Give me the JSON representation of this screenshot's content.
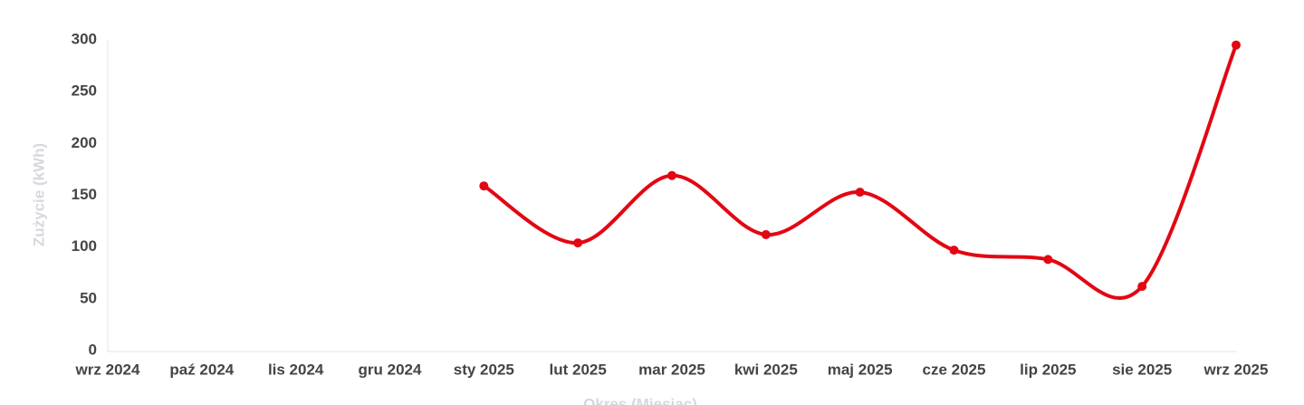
{
  "chart_data": {
    "type": "line",
    "y_label": "Zużycie (kWh)",
    "x_label": "Okres (Miesiąc)",
    "categories": [
      "wrz 2024",
      "paź 2024",
      "lis 2024",
      "gru 2024",
      "sty 2025",
      "lut 2025",
      "mar 2025",
      "kwi 2025",
      "maj 2025",
      "cze 2025",
      "lip 2025",
      "sie 2025",
      "wrz 2025"
    ],
    "values": [
      null,
      null,
      null,
      null,
      159,
      104,
      169,
      112,
      153,
      97,
      88,
      62,
      295
    ],
    "color": "#e30613",
    "smooth": true,
    "ylim": [
      0,
      300
    ],
    "yticks": [
      0,
      50,
      100,
      150,
      200,
      250,
      300
    ]
  }
}
